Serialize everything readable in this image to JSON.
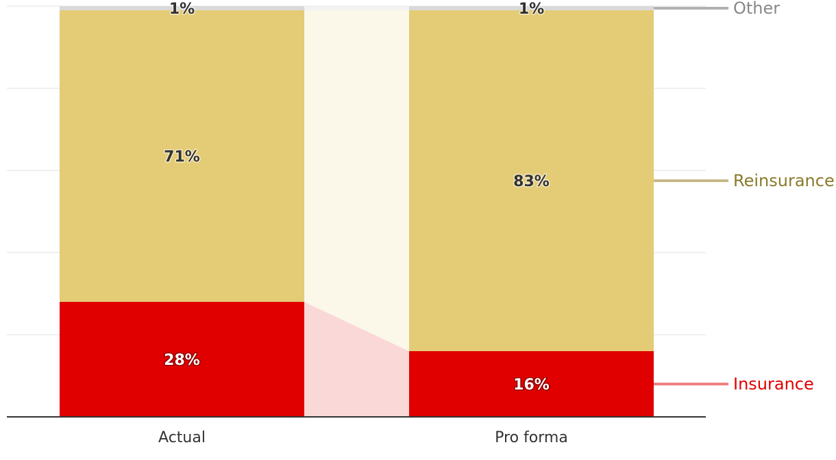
{
  "chart_data": {
    "type": "bar",
    "stacked": true,
    "normalized_to": 100,
    "value_unit": "%",
    "categories": [
      "Actual",
      "Pro forma"
    ],
    "series": [
      {
        "name": "Insurance",
        "values": [
          28,
          16
        ],
        "labels": [
          "28%",
          "16%"
        ],
        "color": "#e00000",
        "label_color": "#ffffff",
        "legend_color": "#e00000",
        "line_color": "#f08080",
        "connector_color": "#fad8d8"
      },
      {
        "name": "Reinsurance",
        "values": [
          71,
          83
        ],
        "labels": [
          "71%",
          "83%"
        ],
        "color": "#e4cb75",
        "label_color": "#333333",
        "legend_color": "#8a7a2a",
        "line_color": "#c8b888",
        "connector_color": "#fbf7e9"
      },
      {
        "name": "Other",
        "values": [
          1,
          1
        ],
        "labels": [
          "1%",
          "1%"
        ],
        "color": "#d9d9d9",
        "label_color": "#333333",
        "legend_color": "#888888",
        "line_color": "#b0b0b0",
        "connector_color": "#f2f2f2"
      }
    ],
    "ylim": [
      0,
      100
    ],
    "grid": true,
    "legend": "right, labels aligned with last bar segments",
    "title": "",
    "xlabel": "",
    "ylabel": ""
  }
}
